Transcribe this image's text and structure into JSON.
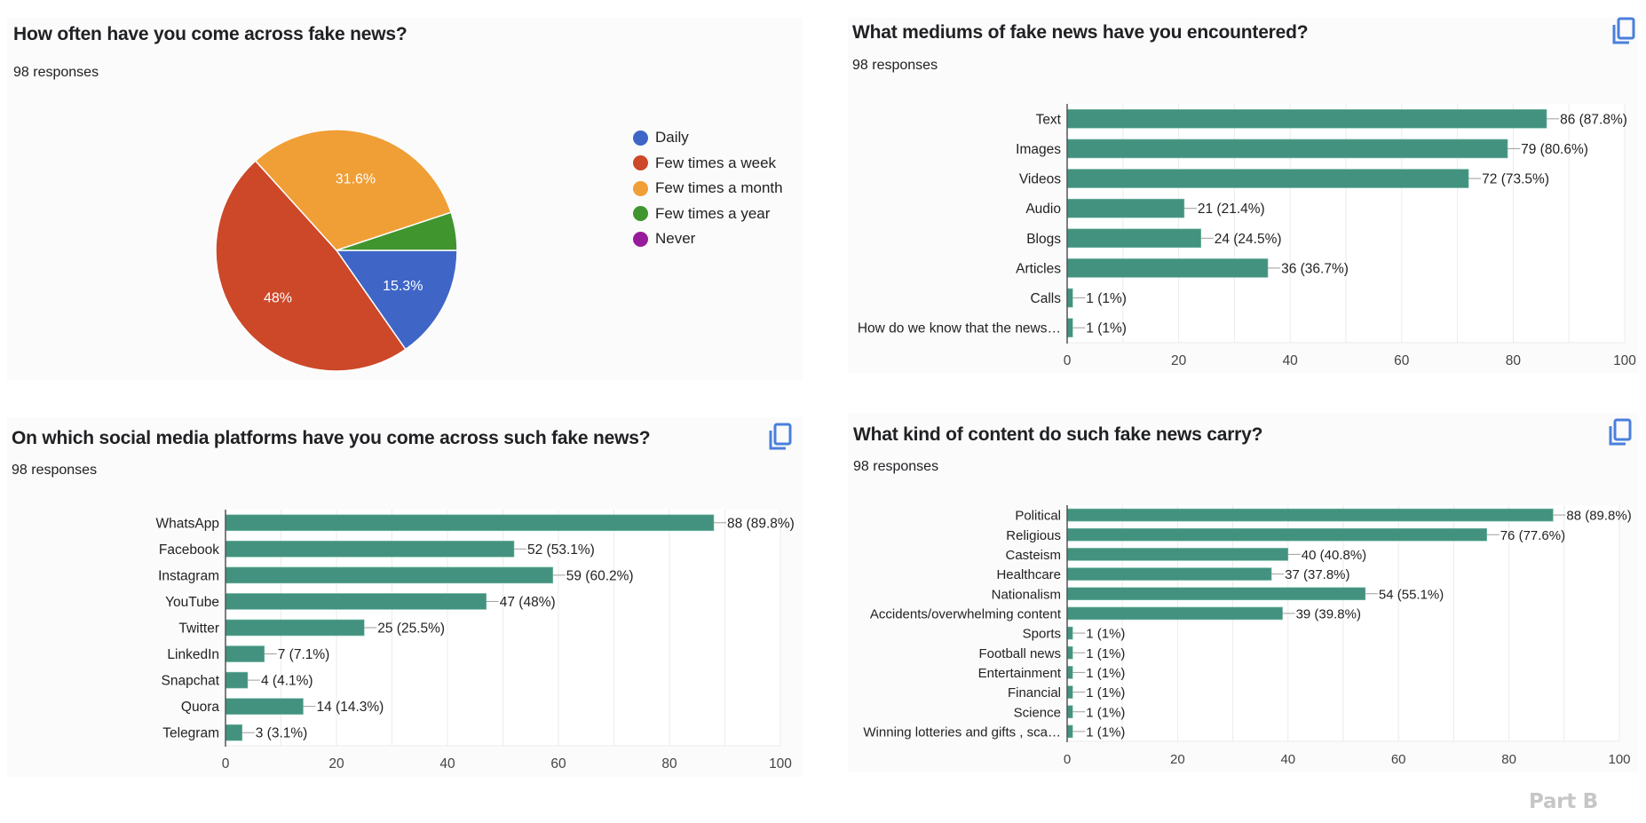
{
  "colors": {
    "bar": "#43927f",
    "accent_icon": "#4a7fdc",
    "watermark": "#c6c6c6"
  },
  "watermark": "Part B",
  "copy_icon": "copy-icon",
  "chart_data": [
    {
      "id": "frequency",
      "type": "pie",
      "title": "How often have you come across fake news?",
      "subtitle": "98 responses",
      "legend_position": "right",
      "slices": [
        {
          "label": "Daily",
          "percent": 15.3,
          "color": "#3f66c7",
          "data_label": "15.3%"
        },
        {
          "label": "Few times a week",
          "percent": 48.0,
          "color": "#cc4828",
          "data_label": "48%"
        },
        {
          "label": "Few times a month",
          "percent": 31.6,
          "color": "#f09e36",
          "data_label": "31.6%"
        },
        {
          "label": "Few times a year",
          "percent": 5.1,
          "color": "#41952f",
          "data_label": ""
        },
        {
          "label": "Never",
          "percent": 0,
          "color": "#981b9b",
          "data_label": ""
        }
      ]
    },
    {
      "id": "mediums",
      "type": "bar",
      "orientation": "horizontal",
      "title": "What mediums of fake news have you encountered?",
      "subtitle": "98 responses",
      "categories": [
        "Text",
        "Images",
        "Videos",
        "Audio",
        "Blogs",
        "Articles",
        "Calls",
        "How do we know that the news…"
      ],
      "values": [
        86,
        79,
        72,
        21,
        24,
        36,
        1,
        1
      ],
      "value_labels": [
        "86 (87.8%)",
        "79 (80.6%)",
        "72 (73.5%)",
        "21 (21.4%)",
        "24 (24.5%)",
        "36 (36.7%)",
        "1 (1%)",
        "1 (1%)"
      ],
      "xlim": [
        0,
        100
      ],
      "xticks": [
        "0",
        "20",
        "40",
        "60",
        "80",
        "100"
      ],
      "grid": true
    },
    {
      "id": "platforms",
      "type": "bar",
      "orientation": "horizontal",
      "title": "On which social media platforms have you come across such fake news?",
      "subtitle": "98 responses",
      "categories": [
        "WhatsApp",
        "Facebook",
        "Instagram",
        "YouTube",
        "Twitter",
        "LinkedIn",
        "Snapchat",
        "Quora",
        "Telegram"
      ],
      "values": [
        88,
        52,
        59,
        47,
        25,
        7,
        4,
        14,
        3
      ],
      "value_labels": [
        "88 (89.8%)",
        "52 (53.1%)",
        "59 (60.2%)",
        "47 (48%)",
        "25 (25.5%)",
        "7 (7.1%)",
        "4 (4.1%)",
        "14 (14.3%)",
        "3 (3.1%)"
      ],
      "xlim": [
        0,
        100
      ],
      "xticks": [
        "0",
        "20",
        "40",
        "60",
        "80",
        "100"
      ],
      "grid": true
    },
    {
      "id": "content",
      "type": "bar",
      "orientation": "horizontal",
      "title": "What kind of content do such fake news carry?",
      "subtitle": "98 responses",
      "categories": [
        "Political",
        "Religious",
        "Casteism",
        "Healthcare",
        "Nationalism",
        "Accidents/overwhelming content",
        "Sports",
        "Football news",
        "Entertainment",
        "Financial",
        "Science",
        "Winning lotteries and gifts , sca…"
      ],
      "values": [
        88,
        76,
        40,
        37,
        54,
        39,
        1,
        1,
        1,
        1,
        1,
        1
      ],
      "value_labels": [
        "88 (89.8%)",
        "76 (77.6%)",
        "40 (40.8%)",
        "37 (37.8%)",
        "54 (55.1%)",
        "39 (39.8%)",
        "1 (1%)",
        "1 (1%)",
        "1 (1%)",
        "1 (1%)",
        "1 (1%)",
        "1 (1%)"
      ],
      "xlim": [
        0,
        100
      ],
      "xticks": [
        "0",
        "20",
        "40",
        "60",
        "80",
        "100"
      ],
      "grid": true
    }
  ]
}
